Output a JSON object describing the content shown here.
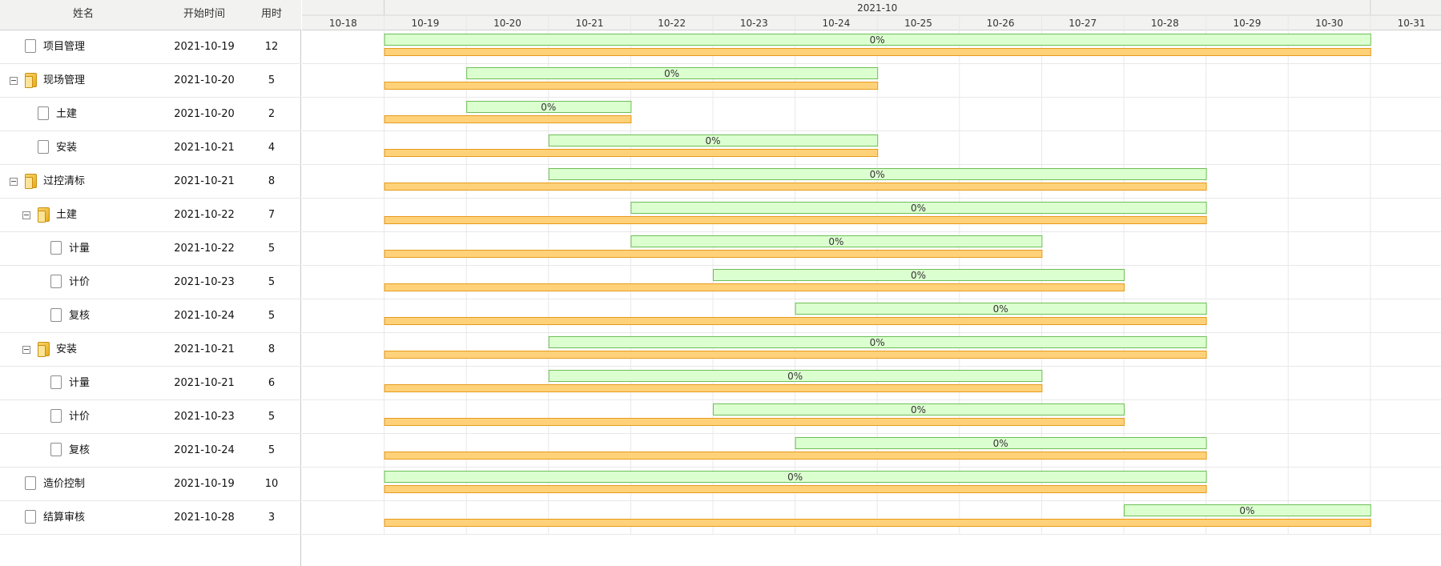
{
  "columns": {
    "name": "姓名",
    "start": "开始时间",
    "duration": "用时"
  },
  "timeline": {
    "month_label": "2021-10",
    "days": [
      "10-18",
      "10-19",
      "10-20",
      "10-21",
      "10-22",
      "10-23",
      "10-24",
      "10-25",
      "10-26",
      "10-27",
      "10-28",
      "10-29",
      "10-30",
      "10-31"
    ]
  },
  "tasks": [
    {
      "name": "项目管理",
      "level": 0,
      "type": "file",
      "start": "2021-10-19",
      "duration": "12",
      "progress": "0%",
      "plan_start_day": 1,
      "plan_end_day": 13,
      "actual_start_day": 1,
      "actual_end_day": 13
    },
    {
      "name": "现场管理",
      "level": 0,
      "type": "folder",
      "start": "2021-10-20",
      "duration": "5",
      "progress": "0%",
      "plan_start_day": 2,
      "plan_end_day": 7,
      "actual_start_day": 1,
      "actual_end_day": 7
    },
    {
      "name": "土建",
      "level": 1,
      "type": "file",
      "start": "2021-10-20",
      "duration": "2",
      "progress": "0%",
      "plan_start_day": 2,
      "plan_end_day": 4,
      "actual_start_day": 1,
      "actual_end_day": 4
    },
    {
      "name": "安装",
      "level": 1,
      "type": "file",
      "start": "2021-10-21",
      "duration": "4",
      "progress": "0%",
      "plan_start_day": 3,
      "plan_end_day": 7,
      "actual_start_day": 1,
      "actual_end_day": 7
    },
    {
      "name": "过控清标",
      "level": 0,
      "type": "folder",
      "start": "2021-10-21",
      "duration": "8",
      "progress": "0%",
      "plan_start_day": 3,
      "plan_end_day": 11,
      "actual_start_day": 1,
      "actual_end_day": 11
    },
    {
      "name": "土建",
      "level": 1,
      "type": "folder",
      "start": "2021-10-22",
      "duration": "7",
      "progress": "0%",
      "plan_start_day": 4,
      "plan_end_day": 11,
      "actual_start_day": 1,
      "actual_end_day": 11
    },
    {
      "name": "计量",
      "level": 2,
      "type": "file",
      "start": "2021-10-22",
      "duration": "5",
      "progress": "0%",
      "plan_start_day": 4,
      "plan_end_day": 9,
      "actual_start_day": 1,
      "actual_end_day": 9
    },
    {
      "name": "计价",
      "level": 2,
      "type": "file",
      "start": "2021-10-23",
      "duration": "5",
      "progress": "0%",
      "plan_start_day": 5,
      "plan_end_day": 10,
      "actual_start_day": 1,
      "actual_end_day": 10
    },
    {
      "name": "复核",
      "level": 2,
      "type": "file",
      "start": "2021-10-24",
      "duration": "5",
      "progress": "0%",
      "plan_start_day": 6,
      "plan_end_day": 11,
      "actual_start_day": 1,
      "actual_end_day": 11
    },
    {
      "name": "安装",
      "level": 1,
      "type": "folder",
      "start": "2021-10-21",
      "duration": "8",
      "progress": "0%",
      "plan_start_day": 3,
      "plan_end_day": 11,
      "actual_start_day": 1,
      "actual_end_day": 11
    },
    {
      "name": "计量",
      "level": 2,
      "type": "file",
      "start": "2021-10-21",
      "duration": "6",
      "progress": "0%",
      "plan_start_day": 3,
      "plan_end_day": 9,
      "actual_start_day": 1,
      "actual_end_day": 9
    },
    {
      "name": "计价",
      "level": 2,
      "type": "file",
      "start": "2021-10-23",
      "duration": "5",
      "progress": "0%",
      "plan_start_day": 5,
      "plan_end_day": 10,
      "actual_start_day": 1,
      "actual_end_day": 10
    },
    {
      "name": "复核",
      "level": 2,
      "type": "file",
      "start": "2021-10-24",
      "duration": "5",
      "progress": "0%",
      "plan_start_day": 6,
      "plan_end_day": 11,
      "actual_start_day": 1,
      "actual_end_day": 11
    },
    {
      "name": "造价控制",
      "level": 0,
      "type": "file",
      "start": "2021-10-19",
      "duration": "10",
      "progress": "0%",
      "plan_start_day": 1,
      "plan_end_day": 11,
      "actual_start_day": 1,
      "actual_end_day": 11
    },
    {
      "name": "结算审核",
      "level": 0,
      "type": "file",
      "start": "2021-10-28",
      "duration": "3",
      "progress": "0%",
      "plan_start_day": 10,
      "plan_end_day": 13,
      "actual_start_day": 1,
      "actual_end_day": 13
    }
  ],
  "colors": {
    "header_bg": "#f2f2f0",
    "plan_fill": "#dcffd0",
    "plan_stroke": "#6cbf55",
    "actual_fill": "#ffd27a",
    "actual_stroke": "#e69a1a",
    "grid_line": "#e8e8e8"
  }
}
